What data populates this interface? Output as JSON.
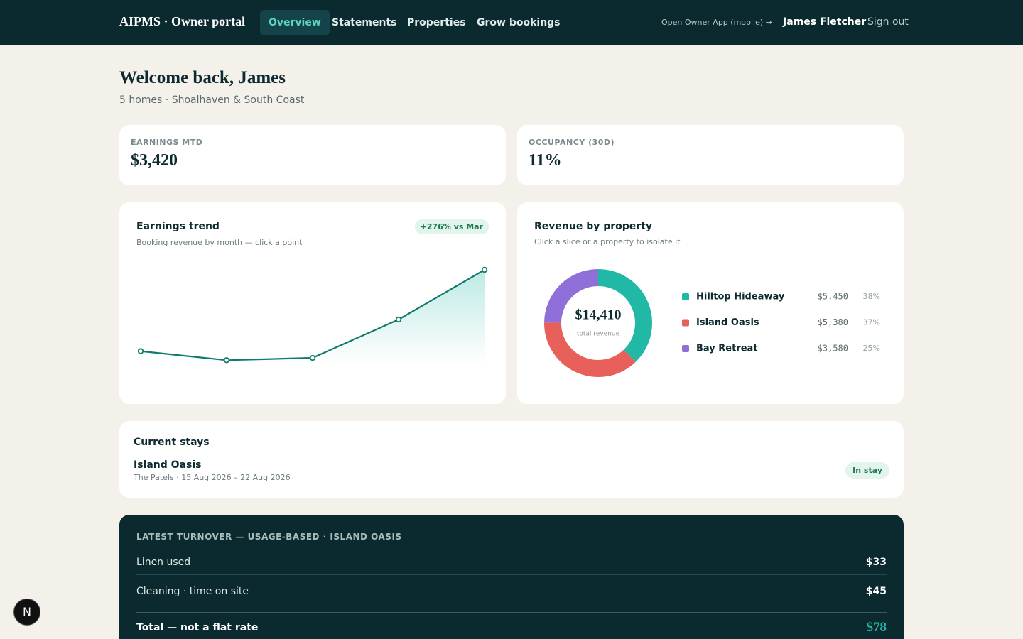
{
  "nav": {
    "brand": "AIPMS · Owner portal",
    "links": [
      "Overview",
      "Statements",
      "Properties",
      "Grow bookings"
    ],
    "app_link": "Open Owner App (mobile) →",
    "user": "James Fletcher",
    "sign_out": "Sign out"
  },
  "header": {
    "title": "Welcome back, James",
    "subtitle": "5 homes · Shoalhaven & South Coast"
  },
  "kpis": [
    {
      "label": "EARNINGS MTD",
      "value": "$3,420"
    },
    {
      "label": "OCCUPANCY (30D)",
      "value": "11%"
    }
  ],
  "chart_data": [
    {
      "type": "line",
      "title": "Earnings trend",
      "subtitle": "Booking revenue by month — click a point",
      "annotation": "+276% vs Mar",
      "categories": [
        null,
        null,
        null,
        null,
        null
      ],
      "values": [
        620,
        310,
        390,
        1710,
        3420
      ],
      "color": "#127a6c"
    },
    {
      "type": "pie",
      "title": "Revenue by property",
      "subtitle": "Click a slice or a property to isolate it",
      "center_label": "$14,410",
      "center_caption": "total revenue",
      "categories": [
        "Hilltop Hideaway",
        "Island Oasis",
        "Bay Retreat"
      ],
      "values": [
        5450,
        5380,
        3580
      ],
      "value_labels": [
        "$5,450",
        "$5,380",
        "$3,580"
      ],
      "shares": [
        38,
        37,
        25
      ],
      "share_labels": [
        "38%",
        "37%",
        "25%"
      ],
      "colors": [
        "#22b8a6",
        "#e8605a",
        "#8f6fd8"
      ]
    }
  ],
  "current_stays": {
    "title": "Current stays",
    "items": [
      {
        "property": "Island Oasis",
        "detail": "The Patels · 15 Aug 2026 – 22 Aug 2026",
        "status": "In stay"
      }
    ]
  },
  "turnover": {
    "title": "LATEST TURNOVER — USAGE-BASED · ISLAND OASIS",
    "rows": [
      {
        "label": "Linen used",
        "amount": "$33"
      },
      {
        "label": "Cleaning · time on site",
        "amount": "$45"
      }
    ],
    "total": {
      "label": "Total — not a flat rate",
      "amount": "$78"
    }
  },
  "dev_badge": "N"
}
